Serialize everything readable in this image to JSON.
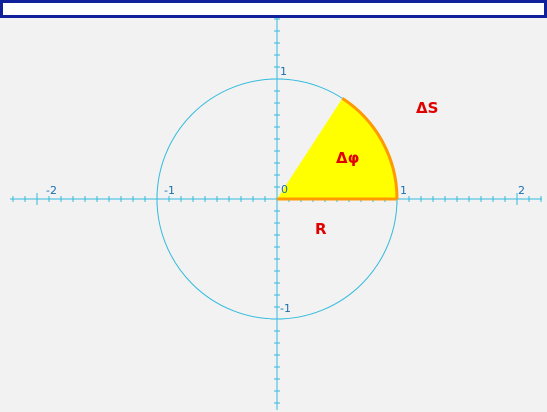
{
  "axes": {
    "x_labels": [
      "-2",
      "-1",
      "1",
      "2"
    ],
    "y_labels": [
      "1",
      "-1"
    ],
    "origin_label": "0"
  },
  "sector": {
    "angle_label": "Δφ",
    "arc_label": "ΔS",
    "radius_label": "R"
  }
}
